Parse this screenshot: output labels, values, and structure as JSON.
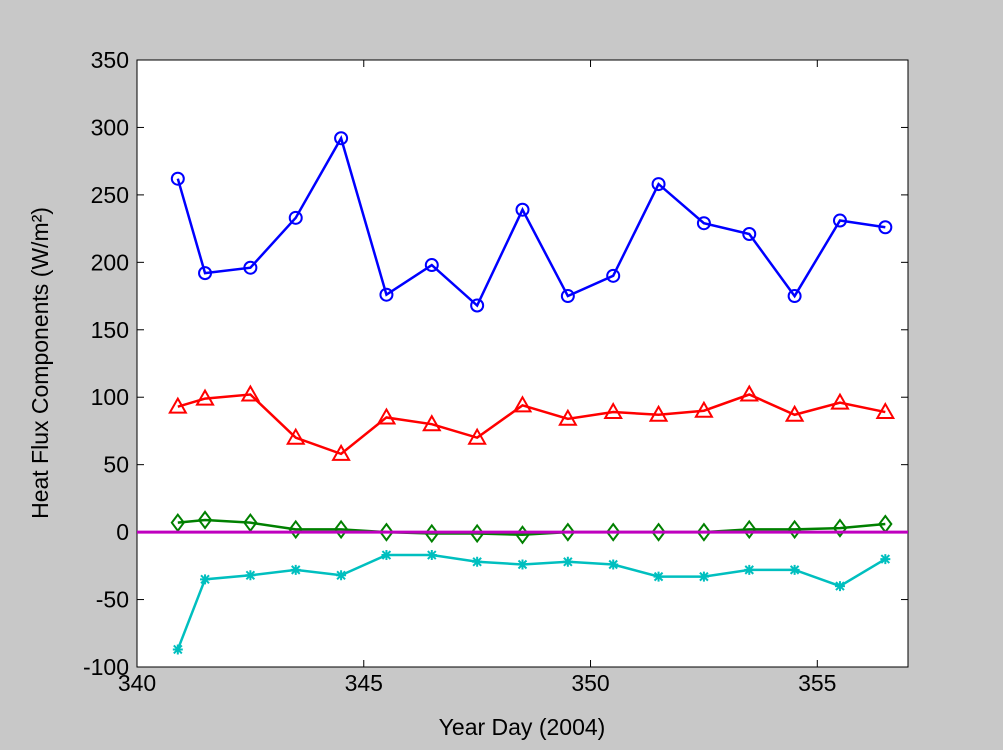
{
  "chart_data": {
    "type": "line",
    "xlabel": "Year Day (2004)",
    "ylabel": "Heat Flux Components (W/m²)",
    "x": [
      340.9,
      341.5,
      342.5,
      343.5,
      344.5,
      345.5,
      346.5,
      347.5,
      348.5,
      349.5,
      350.5,
      351.5,
      352.5,
      353.5,
      354.5,
      355.5,
      356.5
    ],
    "series": [
      {
        "color": "#0000ff",
        "marker": "circle",
        "values": [
          262,
          192,
          196,
          233,
          292,
          176,
          198,
          168,
          239,
          175,
          190,
          258,
          229,
          221,
          175,
          231,
          226
        ]
      },
      {
        "color": "#ff0000",
        "marker": "triangle",
        "values": [
          93,
          99,
          102,
          70,
          58,
          85,
          80,
          70,
          94,
          84,
          89,
          87,
          90,
          102,
          87,
          96,
          89
        ]
      },
      {
        "color": "#008000",
        "marker": "diamond",
        "values": [
          7,
          9,
          7,
          2,
          2,
          0,
          -1,
          -1,
          -2,
          0,
          0,
          0,
          0,
          2,
          2,
          3,
          6
        ]
      },
      {
        "color": "#00bfbf",
        "marker": "asterisk",
        "values": [
          -87,
          -35,
          -32,
          -28,
          -32,
          -17,
          -17,
          -22,
          -24,
          -22,
          -24,
          -33,
          -33,
          -28,
          -28,
          -40,
          -20
        ]
      }
    ],
    "reference_line": {
      "value": 0,
      "color": "#bf00bf"
    },
    "xlim": [
      340,
      357
    ],
    "xticks": [
      340,
      345,
      350,
      355
    ],
    "ylim": [
      -100,
      350
    ],
    "yticks": [
      -100,
      -50,
      0,
      50,
      100,
      150,
      200,
      250,
      300,
      350
    ]
  }
}
